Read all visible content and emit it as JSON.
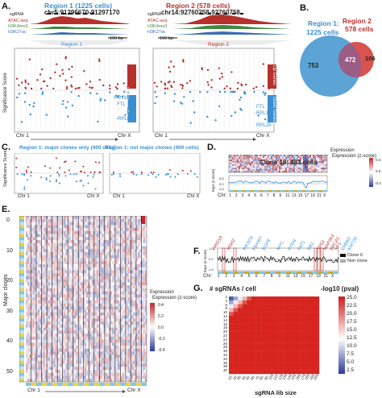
{
  "panels": {
    "A": "A.",
    "B": "B.",
    "C": "C.",
    "D": "D.",
    "E": "E.",
    "F": "F.",
    "G": "G."
  },
  "panelA": {
    "region1_title": "Region 1 (1225 cells)",
    "region1_coords": "chr5:91296670-91297170",
    "region2_title": "Region 2 (578 cells)",
    "region2_coords": "chr14:92760258-92760758",
    "tracks": [
      "sgRNA",
      "ATAC-seq",
      "H3K4me3",
      "H3K27ac"
    ],
    "scale_bar": "100 bp",
    "region1_label": "Region 1",
    "region2_label": "Region 2",
    "ylabel": "Significance Score",
    "up_genes": "Up Genes",
    "down_genes": "Down Genes",
    "genes_left": [
      "-RPL10A",
      "FTL",
      "-RPL28"
    ],
    "genes_right": [
      "FTL",
      "-RPL13A",
      "RPL28"
    ],
    "x_start": "Chr 1",
    "x_end": "Chr X",
    "colors": {
      "region1": "#3b8fd0",
      "region2": "#b7312c",
      "up": "#b7312c",
      "down": "#3b8fd0"
    }
  },
  "panelB": {
    "region1_label": "Region 1:",
    "region1_cells": "1225 cells",
    "region2_label": "Region 2",
    "region2_cells": "578 cells",
    "only1": "753",
    "both": "472",
    "only2": "106",
    "colors": {
      "region1": "#5ca3d6",
      "region2": "#d9534f",
      "overlap": "#9a5d86"
    }
  },
  "panelC": {
    "left_title": "Region 1: major clones only (400 cells)",
    "right_title": "Region 1: not major clones (400 cells)",
    "ylabel": "Significance Score",
    "x_start": "Chr 1",
    "x_end": "Chr X"
  },
  "panelD": {
    "title": "Clone 18: 483 cells",
    "legend_title": "Expression (z-score)",
    "legend_ticks": [
      "0.4",
      "0.2",
      "0.0",
      "-0.2",
      "-0.4"
    ],
    "ylabel": "Expr (z-score)",
    "yticks": [
      "0.5",
      "0.0",
      "-0.5",
      "-1.0"
    ],
    "chr_label": "Chr:",
    "chr_ticks": [
      "1",
      "2",
      "3",
      "4",
      "5",
      "6",
      "7",
      "8",
      "9",
      "11",
      "13",
      "15",
      "17",
      "19",
      "21",
      "X"
    ]
  },
  "panelE": {
    "ylabel": "Major clones",
    "yticks": [
      "0",
      "10",
      "20",
      "30",
      "40",
      "50"
    ],
    "legend_title": "Expression (z-score)",
    "legend_ticks": [
      "0.4",
      "0.2",
      "0.0",
      "-0.2",
      "-0.4"
    ],
    "x_start": "Chr 1",
    "x_end": "Chr X"
  },
  "panelF": {
    "genes_red": [
      "ARID1A",
      "MSH2",
      "TP53",
      "MAP2K4",
      "BRCA1",
      "NF1"
    ],
    "genes_blue": [
      "PIK3CA",
      "FBXW7",
      "EGFR",
      "MYC",
      "PTEN",
      "FAT1",
      "RB1",
      "ERBB2",
      "KMT2D"
    ],
    "ylabel": "Expr (z-score)",
    "yticks": [
      "1.0",
      "0.5",
      "0.0",
      "-0.5",
      "-1.0"
    ],
    "legend": [
      "Clone 0",
      "Non clone"
    ],
    "chr_label": "Chr:",
    "chr_ticks": [
      "1",
      "2",
      "3",
      "4",
      "5",
      "6",
      "7",
      "8",
      "9",
      "11",
      "13",
      "15",
      "17",
      "19",
      "21",
      "X"
    ]
  },
  "panelG": {
    "ylabel": "# sgRNAs / cell",
    "xlabel": "sgRNA lib size",
    "legend_title": "-log10 (pval)",
    "yticks": [
      "2",
      "4",
      "6",
      "8",
      "10",
      "12",
      "14",
      "16",
      "18",
      "20",
      "22",
      "24",
      "26",
      "28",
      "30",
      "32",
      "34",
      "36",
      "38",
      "40"
    ],
    "xticks": [
      "10",
      "20",
      "30",
      "40",
      "50",
      "60",
      "70",
      "80",
      "90",
      "100",
      "110",
      "120",
      "130",
      "140",
      "150",
      "160",
      "170",
      "180",
      "190",
      "200"
    ],
    "legend_ticks": [
      "25.0",
      "22.5",
      "20.0",
      "17.5",
      "15.0",
      "12.5",
      "10.0",
      "7.5",
      "5.0",
      "2.5"
    ]
  }
}
